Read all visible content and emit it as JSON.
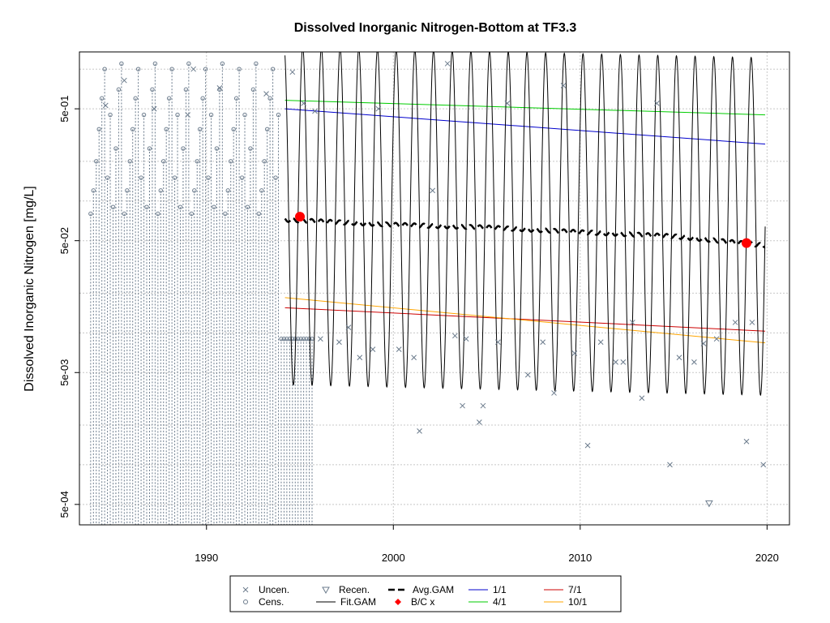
{
  "chart_data": {
    "type": "line",
    "title": "Dissolved Inorganic Nitrogen-Bottom at TF3.3",
    "xlabel": "",
    "ylabel": "Dissolved Inorganic Nitrogen [mg/L]",
    "log_y": true,
    "xlim": [
      1983.2,
      2021.2
    ],
    "ylim": [
      0.00035,
      1.35
    ],
    "grid": true,
    "x_ticks": [
      1990,
      2000,
      2010,
      2020
    ],
    "x_tick_labels": [
      "1990",
      "2000",
      "2010",
      "2020"
    ],
    "y_ticks": [
      0.0005,
      0.005,
      0.05,
      0.5
    ],
    "y_tick_labels": [
      "5e-04",
      "5e-03",
      "5e-02",
      "5e-01"
    ],
    "y_grid_extra": [
      0.0002,
      0.001,
      0.002,
      0.01,
      0.02,
      0.1,
      0.2,
      1.0
    ],
    "gam_range": [
      1994.2,
      2019.9
    ],
    "fit_gam": {
      "name": "Fit.GAM",
      "color": "#000000",
      "mean": 0.077,
      "amplitude_log": 1.28
    },
    "avg_gam": {
      "name": "Avg.GAM",
      "color": "#000000",
      "points": [
        [
          1994.2,
          0.072
        ],
        [
          2000,
          0.066
        ],
        [
          2005,
          0.063
        ],
        [
          2010,
          0.058
        ],
        [
          2015,
          0.054
        ],
        [
          2019.9,
          0.046
        ]
      ]
    },
    "lines": [
      {
        "name": "1/1",
        "color": "#0000CD",
        "points": [
          [
            1994.2,
            0.5
          ],
          [
            2019.9,
            0.27
          ]
        ]
      },
      {
        "name": "4/1",
        "color": "#00CD00",
        "points": [
          [
            1994.2,
            0.58
          ],
          [
            2019.9,
            0.45
          ]
        ]
      },
      {
        "name": "7/1",
        "color": "#CD0000",
        "points": [
          [
            1994.2,
            0.0155
          ],
          [
            2019.9,
            0.0103
          ]
        ]
      },
      {
        "name": "10/1",
        "color": "#FFA500",
        "points": [
          [
            1994.2,
            0.0185
          ],
          [
            2019.9,
            0.0084
          ]
        ]
      }
    ],
    "bc_points": {
      "name": "B/C x",
      "color": "#FF0000",
      "points": [
        [
          1995.0,
          0.076
        ],
        [
          2018.9,
          0.048
        ]
      ]
    },
    "recensored": {
      "name": "Recen.",
      "points": [
        [
          2016.9,
          0.00051
        ]
      ]
    },
    "uncensored": {
      "name": "Uncen.",
      "color": "#6B7B8C",
      "points": [
        [
          1984.6,
          0.53
        ],
        [
          1985.6,
          0.82
        ],
        [
          1987.2,
          0.5
        ],
        [
          1989.0,
          0.45
        ],
        [
          1989.3,
          1.0
        ],
        [
          1990.7,
          0.72
        ],
        [
          1993.2,
          0.65
        ],
        [
          1994.6,
          0.95
        ],
        [
          1995.2,
          0.55
        ],
        [
          1995.8,
          0.48
        ],
        [
          1996.1,
          0.009
        ],
        [
          1997.1,
          0.0085
        ],
        [
          1997.6,
          0.011
        ],
        [
          1998.2,
          0.0065
        ],
        [
          1998.9,
          0.0075
        ],
        [
          1999.2,
          0.5
        ],
        [
          2000.3,
          0.0075
        ],
        [
          2001.1,
          0.0065
        ],
        [
          2001.4,
          0.0018
        ],
        [
          2002.1,
          0.12
        ],
        [
          2002.9,
          1.1
        ],
        [
          2003.3,
          0.0095
        ],
        [
          2003.7,
          0.0028
        ],
        [
          2003.9,
          0.009
        ],
        [
          2004.6,
          0.0021
        ],
        [
          2004.8,
          0.0028
        ],
        [
          2005.6,
          0.0085
        ],
        [
          2006.1,
          0.55
        ],
        [
          2007.2,
          0.0048
        ],
        [
          2008.0,
          0.0085
        ],
        [
          2008.6,
          0.0035
        ],
        [
          2009.1,
          0.75
        ],
        [
          2009.7,
          0.007
        ],
        [
          2010.4,
          0.0014
        ],
        [
          2011.1,
          0.0085
        ],
        [
          2011.9,
          0.006
        ],
        [
          2012.3,
          0.006
        ],
        [
          2012.8,
          0.012
        ],
        [
          2013.3,
          0.0032
        ],
        [
          2014.1,
          0.55
        ],
        [
          2014.8,
          0.001
        ],
        [
          2015.3,
          0.0065
        ],
        [
          2016.1,
          0.006
        ],
        [
          2016.6,
          0.0083
        ],
        [
          2017.3,
          0.009
        ],
        [
          2018.3,
          0.012
        ],
        [
          2018.9,
          0.0015
        ],
        [
          2019.2,
          0.012
        ],
        [
          2019.8,
          0.001
        ]
      ]
    },
    "censored": {
      "name": "Cens.",
      "color": "#6B7B8C",
      "x_start": 1983.8,
      "x_end": 1995.8,
      "step": 0.15,
      "min": 0.00035,
      "high_until": 1993.9,
      "high_values": [
        0.08,
        0.12,
        0.2,
        0.35,
        0.6,
        1.0,
        0.15,
        0.45,
        0.09,
        0.25,
        0.7,
        1.1
      ],
      "low_value": 0.009
    },
    "legend": {
      "placement": "bottom-center",
      "items": [
        {
          "label": "Uncen.",
          "symbol": "x",
          "color": "#6B7B8C"
        },
        {
          "label": "Recen.",
          "symbol": "triangle-down",
          "color": "#6B7B8C"
        },
        {
          "label": "Avg.GAM",
          "symbol": "dashed-line",
          "color": "#000000"
        },
        {
          "label": "1/1",
          "symbol": "line",
          "color": "#0000CD"
        },
        {
          "label": "7/1",
          "symbol": "line",
          "color": "#CD0000"
        },
        {
          "label": "Cens.",
          "symbol": "circle",
          "color": "#6B7B8C"
        },
        {
          "label": "Fit.GAM",
          "symbol": "line",
          "color": "#000000"
        },
        {
          "label": "B/C x",
          "symbol": "diamond",
          "color": "#FF0000"
        },
        {
          "label": "4/1",
          "symbol": "line",
          "color": "#00CD00"
        },
        {
          "label": "10/1",
          "symbol": "line",
          "color": "#FFA500"
        }
      ]
    }
  }
}
